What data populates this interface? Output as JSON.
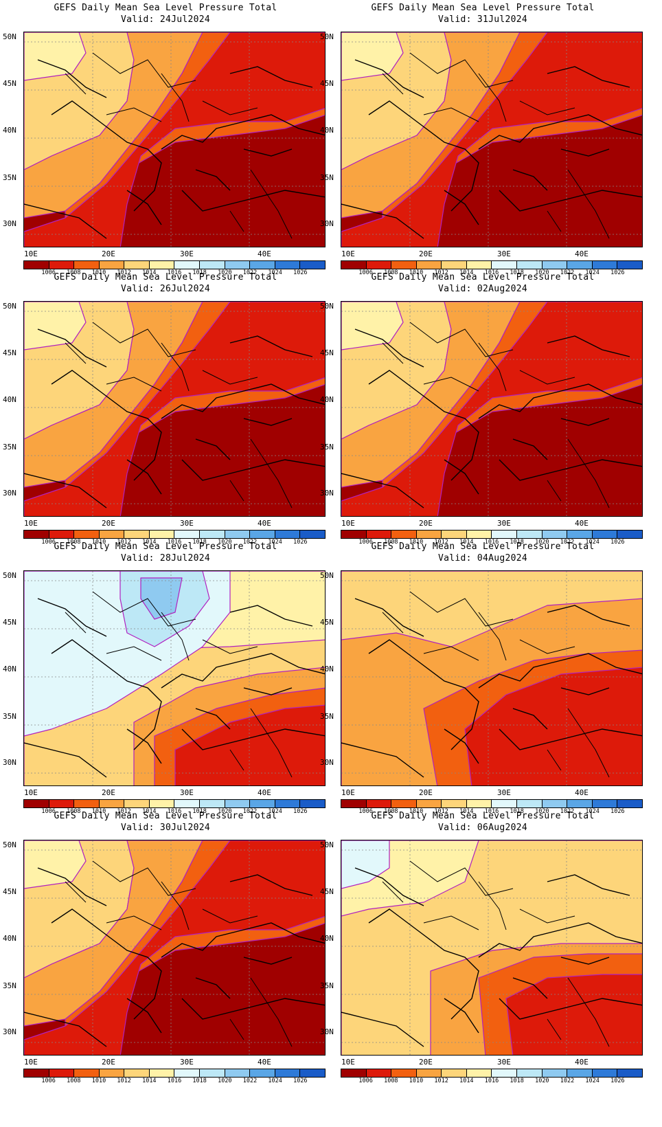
{
  "title_line": "GEFS Daily Mean Sea Level Pressure Total",
  "x_ticks": [
    "10E",
    "20E",
    "30E",
    "40E"
  ],
  "y_ticks": [
    "50N",
    "45N",
    "40N",
    "35N",
    "30N"
  ],
  "colorbar": {
    "labels": [
      "1006",
      "1008",
      "1010",
      "1012",
      "1014",
      "1016",
      "1018",
      "1020",
      "1022",
      "1024",
      "1026"
    ],
    "colors": [
      "#a00000",
      "#dd1a0a",
      "#f26010",
      "#f9a441",
      "#fdd57a",
      "#fff2a8",
      "#e2f8fb",
      "#bde8f6",
      "#8fcaf0",
      "#5aa6e6",
      "#2e7ad8",
      "#1a5cc8"
    ]
  },
  "panels": [
    {
      "valid": "Valid: 24Jul2024",
      "mode": "hot"
    },
    {
      "valid": "Valid: 31Jul2024",
      "mode": "hot"
    },
    {
      "valid": "Valid: 26Jul2024",
      "mode": "hot"
    },
    {
      "valid": "Valid: 02Aug2024",
      "mode": "hot"
    },
    {
      "valid": "Valid: 28Jul2024",
      "mode": "cool"
    },
    {
      "valid": "Valid: 04Aug2024",
      "mode": "warm"
    },
    {
      "valid": "Valid: 30Jul2024",
      "mode": "hot"
    },
    {
      "valid": "Valid: 06Aug2024",
      "mode": "mild"
    }
  ]
}
